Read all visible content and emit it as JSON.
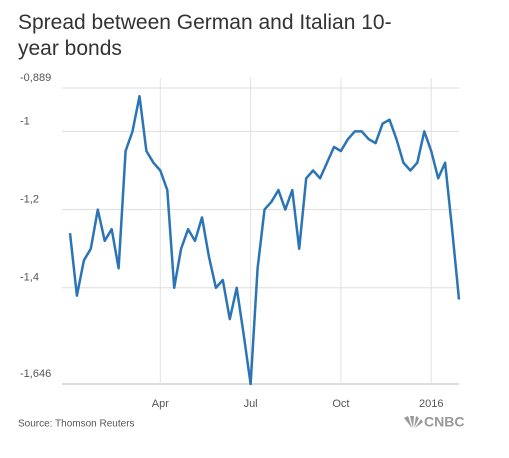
{
  "chart_data": {
    "type": "line",
    "title": "Spread between German and Italian 10-year bonds",
    "source": "Source: Thomson Reuters",
    "logo": "CNBC",
    "categories": [
      null,
      null,
      null,
      null,
      null,
      null,
      null,
      null,
      null,
      null,
      null,
      null,
      null,
      "Apr",
      null,
      null,
      null,
      null,
      null,
      null,
      null,
      null,
      null,
      null,
      null,
      null,
      "Jul",
      null,
      null,
      null,
      null,
      null,
      null,
      null,
      null,
      null,
      null,
      null,
      null,
      "Oct",
      null,
      null,
      null,
      null,
      null,
      null,
      null,
      null,
      null,
      null,
      null,
      null,
      "2016",
      null,
      null,
      null,
      null
    ],
    "values": [
      -1.26,
      -1.42,
      -1.33,
      -1.3,
      -1.2,
      -1.28,
      -1.25,
      -1.35,
      -1.05,
      -1.0,
      -0.91,
      -1.05,
      -1.08,
      -1.1,
      -1.15,
      -1.4,
      -1.3,
      -1.25,
      -1.28,
      -1.22,
      -1.32,
      -1.4,
      -1.38,
      -1.48,
      -1.4,
      -1.52,
      -1.646,
      -1.35,
      -1.2,
      -1.18,
      -1.15,
      -1.2,
      -1.15,
      -1.3,
      -1.12,
      -1.1,
      -1.12,
      -1.08,
      -1.04,
      -1.05,
      -1.02,
      -1.0,
      -1.0,
      -1.02,
      -1.03,
      -0.98,
      -0.97,
      -1.02,
      -1.08,
      -1.1,
      -1.08,
      -1.0,
      -1.05,
      -1.12,
      -1.08,
      -1.25,
      -1.43
    ],
    "color": "#2b74b6",
    "ylim": [
      -1.646,
      -0.889
    ],
    "yticks": [
      {
        "value": -1.646,
        "label": "-1,646"
      },
      {
        "value": -1.4,
        "label": "-1,4"
      },
      {
        "value": -1.2,
        "label": "-1,2"
      },
      -1,
      {
        "value": -0.889,
        "label": "-0,889"
      }
    ],
    "grid": true
  }
}
